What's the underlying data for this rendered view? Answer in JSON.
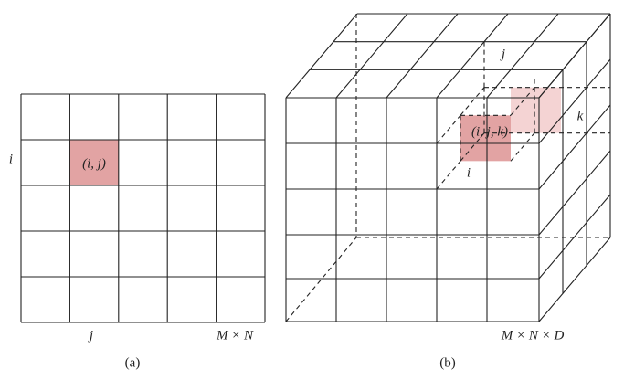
{
  "panel_a": {
    "row_label": "i",
    "cell_label": "(i, j)",
    "col_label": "j",
    "size_label": "M × N",
    "caption": "(a)"
  },
  "panel_b": {
    "col_label": "j",
    "depth_label": "k",
    "cell_label": "(i, j, k)",
    "row_label": "i",
    "size_label": "M × N × D",
    "caption": "(b)"
  }
}
